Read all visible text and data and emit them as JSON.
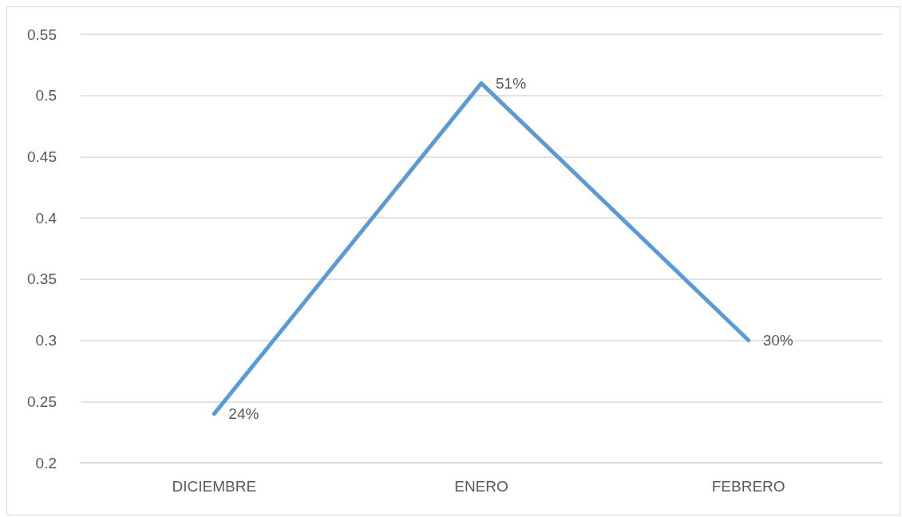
{
  "chart_data": {
    "type": "line",
    "categories": [
      "DICIEMBRE",
      "ENERO",
      "FEBRERO"
    ],
    "series": [
      {
        "color": "#5b9bd5",
        "values": [
          0.24,
          0.51,
          0.3
        ],
        "value_labels": [
          "24%",
          "51%",
          "30%"
        ]
      }
    ],
    "ylim": [
      0.2,
      0.55
    ],
    "yticks": [
      0.2,
      0.25,
      0.3,
      0.35,
      0.4,
      0.45,
      0.5,
      0.55
    ],
    "grid": "y",
    "marker": "none",
    "line_style": "solid"
  }
}
